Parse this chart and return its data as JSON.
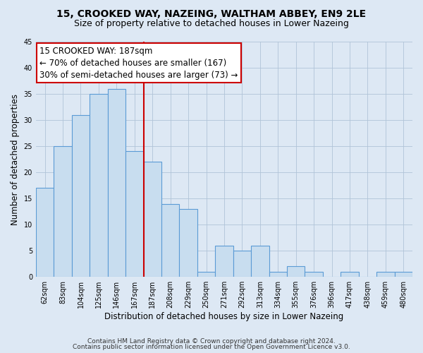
{
  "title": "15, CROOKED WAY, NAZEING, WALTHAM ABBEY, EN9 2LE",
  "subtitle": "Size of property relative to detached houses in Lower Nazeing",
  "xlabel": "Distribution of detached houses by size in Lower Nazeing",
  "ylabel": "Number of detached properties",
  "bar_labels": [
    "62sqm",
    "83sqm",
    "104sqm",
    "125sqm",
    "146sqm",
    "167sqm",
    "187sqm",
    "208sqm",
    "229sqm",
    "250sqm",
    "271sqm",
    "292sqm",
    "313sqm",
    "334sqm",
    "355sqm",
    "376sqm",
    "396sqm",
    "417sqm",
    "438sqm",
    "459sqm",
    "480sqm"
  ],
  "bar_values": [
    17,
    25,
    31,
    35,
    36,
    24,
    22,
    14,
    13,
    1,
    6,
    5,
    6,
    1,
    2,
    1,
    0,
    1,
    0,
    1,
    1
  ],
  "highlight_index": 6,
  "bar_color": "#c8ddef",
  "bar_edge_color": "#5b9bd5",
  "highlight_line_color": "#cc0000",
  "annotation_text": "15 CROOKED WAY: 187sqm\n← 70% of detached houses are smaller (167)\n30% of semi-detached houses are larger (73) →",
  "annotation_box_color": "#ffffff",
  "annotation_box_edge_color": "#cc0000",
  "ylim": [
    0,
    45
  ],
  "yticks": [
    0,
    5,
    10,
    15,
    20,
    25,
    30,
    35,
    40,
    45
  ],
  "footer_line1": "Contains HM Land Registry data © Crown copyright and database right 2024.",
  "footer_line2": "Contains public sector information licensed under the Open Government Licence v3.0.",
  "bg_color": "#dde8f4",
  "plot_bg_color": "#dde8f4",
  "title_fontsize": 10,
  "subtitle_fontsize": 9,
  "axis_label_fontsize": 8.5,
  "tick_fontsize": 7,
  "annotation_fontsize": 8.5,
  "footer_fontsize": 6.5
}
